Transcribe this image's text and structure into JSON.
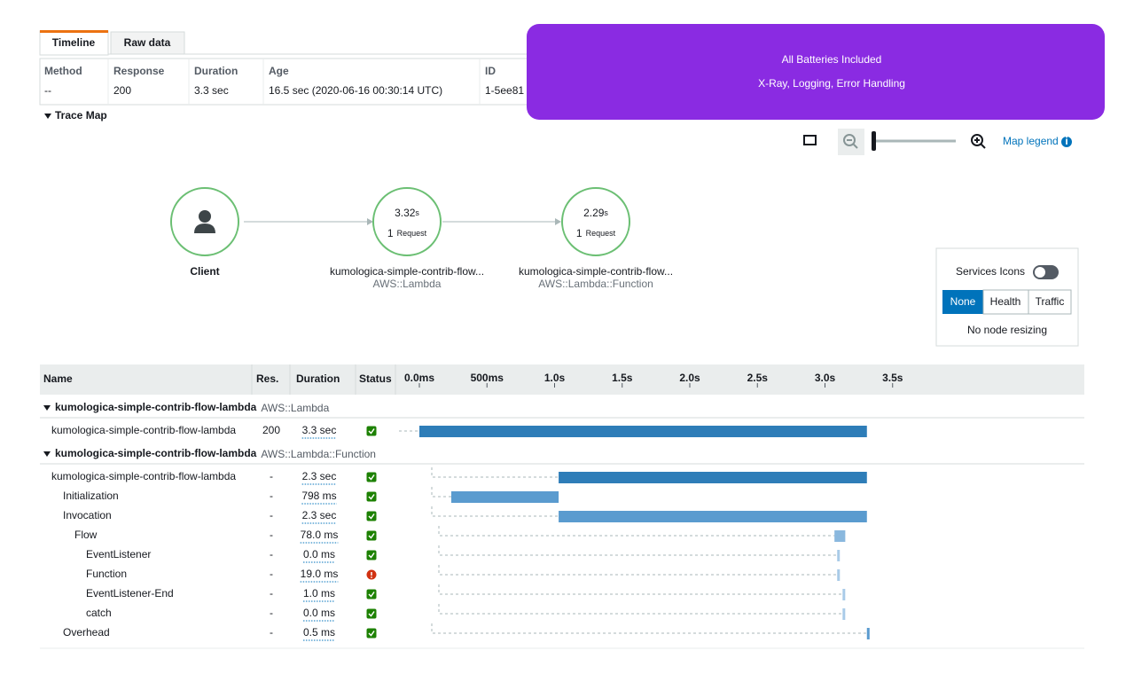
{
  "tabs": [
    "Timeline",
    "Raw data"
  ],
  "summary": {
    "headers": [
      "Method",
      "Response",
      "Duration",
      "Age",
      "ID"
    ],
    "values": [
      "--",
      "200",
      "3.3 sec",
      "16.5 sec (2020-06-16 00:30:14 UTC)",
      "1-5ee81"
    ]
  },
  "trace_map": {
    "title": "Trace Map",
    "map_legend": "Map legend",
    "client": "Client",
    "nodes": [
      {
        "value": "3.32",
        "unit": "s",
        "count": "1",
        "count_label": "Request",
        "label": "kumologica-simple-contrib-flow...",
        "sublabel": "AWS::Lambda"
      },
      {
        "value": "2.29",
        "unit": "s",
        "count": "1",
        "count_label": "Request",
        "label": "kumologica-simple-contrib-flow...",
        "sublabel": "AWS::Lambda::Function"
      }
    ]
  },
  "panel": {
    "services_icons": "Services Icons",
    "buttons": [
      "None",
      "Health",
      "Traffic"
    ],
    "note": "No node resizing"
  },
  "timeline": {
    "headers": [
      "Name",
      "Res.",
      "Duration",
      "Status"
    ],
    "ticks": [
      {
        "value": 0,
        "label": "0.0ms"
      },
      {
        "value": 0.5,
        "label": "500ms"
      },
      {
        "value": 1,
        "label": "1.0s"
      },
      {
        "value": 1.5,
        "label": "1.5s"
      },
      {
        "value": 2,
        "label": "2.0s"
      },
      {
        "value": 2.5,
        "label": "2.5s"
      },
      {
        "value": 3,
        "label": "3.0s"
      },
      {
        "value": 3.5,
        "label": "3.5s"
      }
    ],
    "groups": [
      {
        "name": "kumologica-simple-contrib-flow-lambda",
        "type": "AWS::Lambda",
        "rows": [
          {
            "name": "kumologica-simple-contrib-flow-lambda",
            "res": "200",
            "duration": "3.3 sec",
            "status": "ok",
            "start": 0,
            "end": 3.31
          }
        ]
      },
      {
        "name": "kumologica-simple-contrib-flow-lambda",
        "type": "AWS::Lambda::Function",
        "rows": [
          {
            "name": "kumologica-simple-contrib-flow-lambda",
            "res": "-",
            "duration": "2.3 sec",
            "status": "ok",
            "start": 1.03,
            "end": 3.31
          },
          {
            "name": "Initialization",
            "res": "-",
            "duration": "798 ms",
            "status": "ok",
            "start": 0.236,
            "end": 1.03
          },
          {
            "name": "Invocation",
            "res": "-",
            "duration": "2.3 sec",
            "status": "ok",
            "start": 1.03,
            "end": 3.31
          },
          {
            "name": "Flow",
            "res": "-",
            "duration": "78.0 ms",
            "status": "ok",
            "start": 3.07,
            "end": 3.15
          },
          {
            "name": "EventListener",
            "res": "-",
            "duration": "0.0 ms",
            "status": "ok",
            "start": 3.09,
            "end": 3.09
          },
          {
            "name": "Function",
            "res": "-",
            "duration": "19.0 ms",
            "status": "error",
            "start": 3.09,
            "end": 3.11
          },
          {
            "name": "EventListener-End",
            "res": "-",
            "duration": "1.0 ms",
            "status": "ok",
            "start": 3.13,
            "end": 3.131
          },
          {
            "name": "catch",
            "res": "-",
            "duration": "0.0 ms",
            "status": "ok",
            "start": 3.13,
            "end": 3.13
          },
          {
            "name": "Overhead",
            "res": "-",
            "duration": "0.5 ms",
            "status": "ok",
            "start": 3.31,
            "end": 3.3105
          }
        ]
      }
    ]
  },
  "banner": {
    "title": "All Batteries Included",
    "subtitle": "X-Ray, Logging, Error Handling"
  }
}
